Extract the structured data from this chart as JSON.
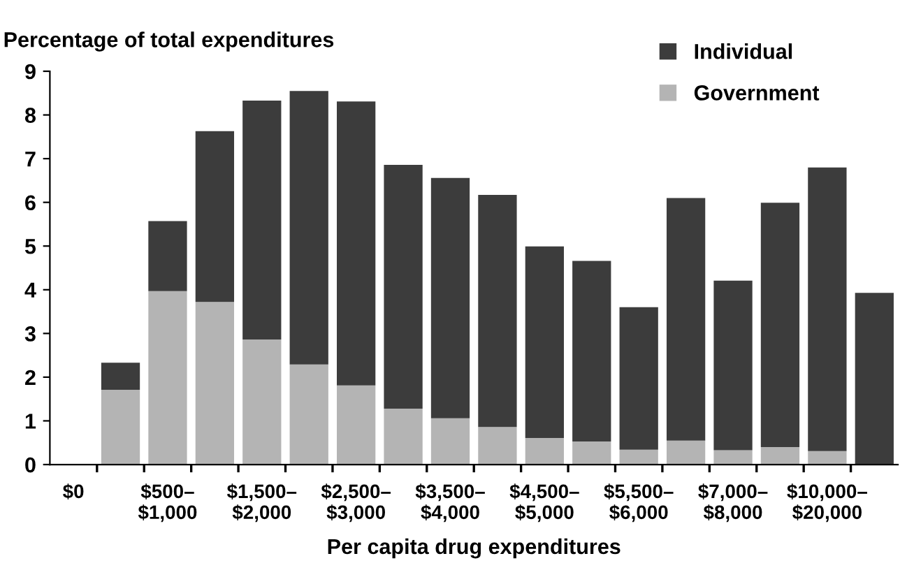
{
  "chart_data": {
    "type": "bar",
    "stacked": true,
    "ylabel": "Percentage of total expenditures",
    "xlabel": "Per capita drug expenditures",
    "categories": [
      "$0",
      null,
      "$500–\n$1,000",
      null,
      "$1,500–\n$2,000",
      null,
      "$2,500–\n$3,000",
      null,
      "$3,500–\n$4,000",
      null,
      "$4,500–\n$5,000",
      null,
      "$5,500–\n$6,000",
      null,
      "$7,000–\n$8,000",
      null,
      "$10,000–\n$20,000",
      null
    ],
    "series": [
      {
        "name": "Government",
        "color": "#b4b4b4",
        "values": [
          null,
          1.71,
          3.97,
          3.72,
          2.86,
          2.29,
          1.81,
          1.28,
          1.06,
          0.86,
          0.61,
          0.53,
          0.34,
          0.55,
          0.33,
          0.4,
          0.31,
          0
        ]
      },
      {
        "name": "Individual",
        "color": "#3c3c3c",
        "values": [
          null,
          0.62,
          1.6,
          3.91,
          5.47,
          6.26,
          6.5,
          5.58,
          5.5,
          5.31,
          4.38,
          4.13,
          3.26,
          5.55,
          3.88,
          5.59,
          6.49,
          3.93
        ]
      }
    ],
    "ylim": [
      0,
      9
    ],
    "yticks": [
      0,
      1,
      2,
      3,
      4,
      5,
      6,
      7,
      8,
      9
    ],
    "grid": false,
    "legend": "top right"
  }
}
